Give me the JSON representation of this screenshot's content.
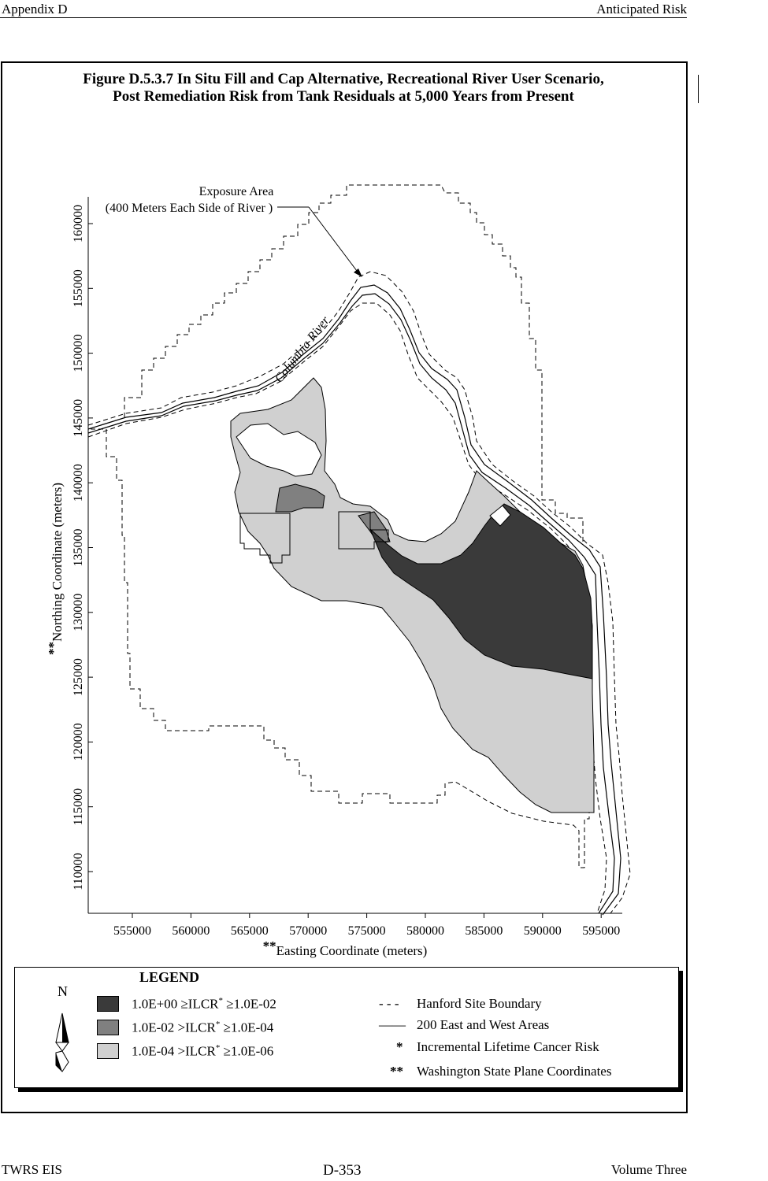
{
  "header": {
    "left": "Appendix D",
    "right": "Anticipated Risk"
  },
  "figure": {
    "title_line1": "Figure D.5.3.7  In Situ Fill and Cap Alternative, Recreational River User Scenario,",
    "title_line2": "Post Remediation Risk from Tank Residuals at 5,000 Years from Present"
  },
  "map": {
    "exposure_label_line1": "Exposure Area",
    "exposure_label_line2": "(400 Meters Each Side of River )",
    "river_label": "Columbia River",
    "y_axis_label_prefix": "**",
    "y_axis_label": "Northing Coordinate (meters)",
    "x_axis_label_prefix": "**",
    "x_axis_label": "Easting Coordinate (meters)",
    "x_ticks": [
      "555000",
      "560000",
      "565000",
      "570000",
      "575000",
      "580000",
      "585000",
      "590000",
      "595000"
    ],
    "y_ticks": [
      "110000",
      "115000",
      "120000",
      "125000",
      "130000",
      "135000",
      "140000",
      "145000",
      "150000",
      "155000",
      "160000"
    ],
    "colors": {
      "high": "#3a3a3a",
      "medium": "#808080",
      "low": "#d0d0d0"
    }
  },
  "legend": {
    "title": "LEGEND",
    "north_symbol": "N",
    "risk_items": [
      {
        "label": "1.0E+00  ≥ILCR",
        "sup": "*",
        "suffix": "  ≥1.0E-02"
      },
      {
        "label": "1.0E-02  >ILCR",
        "sup": "*",
        "suffix": "  ≥1.0E-04"
      },
      {
        "label": "1.0E-04  >ILCR",
        "sup": "*",
        "suffix": "  ≥1.0E-06"
      }
    ],
    "line_items": [
      {
        "symbol": "- - -",
        "label": "Hanford Site Boundary"
      },
      {
        "symbol": "——",
        "label": "200 East and West Areas"
      },
      {
        "symbol": "*",
        "label": "Incremental Lifetime Cancer Risk"
      },
      {
        "symbol": "**",
        "label": "Washington State Plane Coordinates"
      }
    ]
  },
  "footer": {
    "left": "TWRS EIS",
    "center": "D-353",
    "right": "Volume Three"
  }
}
